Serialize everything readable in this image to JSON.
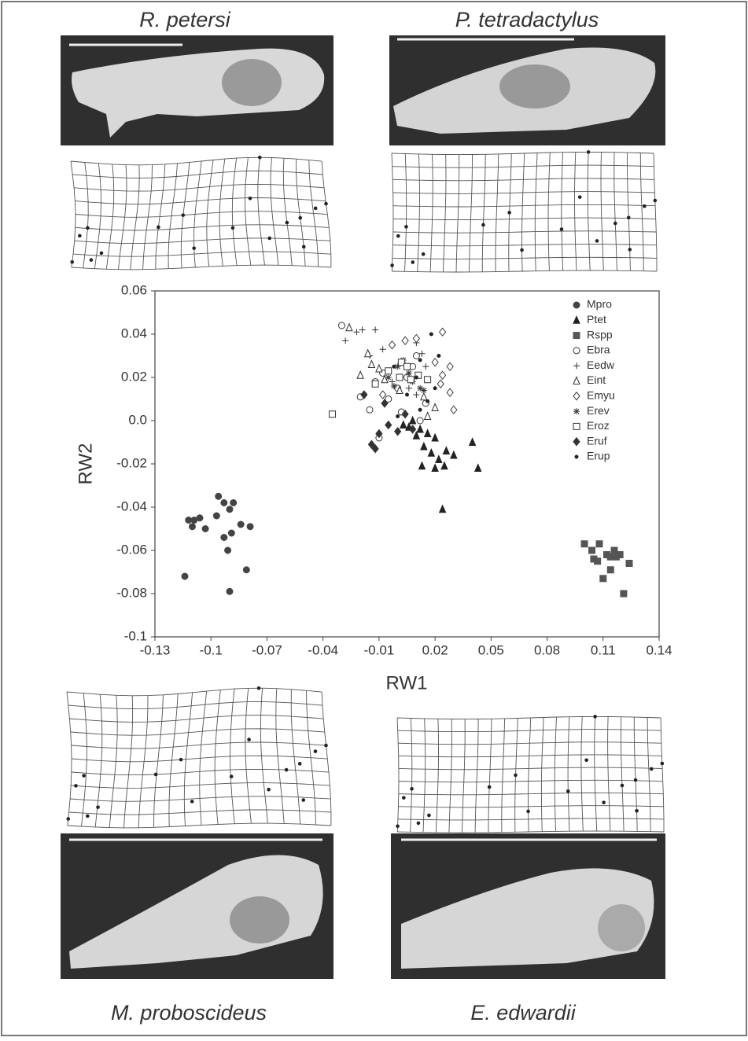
{
  "specimen_labels": [
    "R. petersi",
    "P. tetradactylus",
    "M. proboscideus",
    "E. edwardii"
  ],
  "chart_data": {
    "type": "scatter",
    "x_label": "RW1",
    "y_label": "RW2",
    "xlim": [
      -0.13,
      0.14
    ],
    "xticks": [
      -0.13,
      -0.1,
      -0.07,
      -0.04,
      -0.01,
      0.02,
      0.05,
      0.08,
      0.11,
      0.14
    ],
    "ylim": [
      -0.1,
      0.06
    ],
    "yticks": [
      0.06,
      0.04,
      0.02,
      {
        "value": 0,
        "label": "0.0"
      },
      -0.02,
      -0.04,
      -0.06,
      -0.08,
      -0.1
    ],
    "grid": false,
    "legend": "upper right",
    "series": [
      {
        "name": "Mpro",
        "marker": "circle-filled",
        "color": "#444444",
        "values": [
          [
            -0.112,
            -0.046
          ],
          [
            -0.109,
            -0.046
          ],
          [
            -0.106,
            -0.045
          ],
          [
            -0.11,
            -0.049
          ],
          [
            -0.096,
            -0.035
          ],
          [
            -0.093,
            -0.038
          ],
          [
            -0.088,
            -0.038
          ],
          [
            -0.09,
            -0.041
          ],
          [
            -0.103,
            -0.05
          ],
          [
            -0.093,
            -0.054
          ],
          [
            -0.089,
            -0.052
          ],
          [
            -0.084,
            -0.048
          ],
          [
            -0.079,
            -0.049
          ],
          [
            -0.114,
            -0.072
          ],
          [
            -0.091,
            -0.06
          ],
          [
            -0.09,
            -0.079
          ],
          [
            -0.081,
            -0.069
          ],
          [
            -0.097,
            -0.044
          ]
        ]
      },
      {
        "name": "Ptet",
        "marker": "triangle-filled",
        "color": "#222222",
        "values": [
          [
            0.003,
            -0.002
          ],
          [
            0.008,
            0.0
          ],
          [
            0.012,
            -0.004
          ],
          [
            0.016,
            -0.006
          ],
          [
            0.02,
            -0.008
          ],
          [
            0.014,
            -0.012
          ],
          [
            0.018,
            -0.015
          ],
          [
            0.022,
            -0.018
          ],
          [
            0.026,
            -0.014
          ],
          [
            0.013,
            -0.021
          ],
          [
            0.02,
            -0.022
          ],
          [
            0.025,
            -0.021
          ],
          [
            0.03,
            -0.016
          ],
          [
            0.04,
            -0.01
          ],
          [
            0.043,
            -0.022
          ],
          [
            0.024,
            -0.041
          ],
          [
            0.01,
            -0.007
          ],
          [
            0.006,
            -0.003
          ]
        ]
      },
      {
        "name": "Rspp",
        "marker": "square-filled",
        "color": "#555555",
        "values": [
          [
            0.1,
            -0.057
          ],
          [
            0.104,
            -0.06
          ],
          [
            0.108,
            -0.057
          ],
          [
            0.105,
            -0.064
          ],
          [
            0.107,
            -0.065
          ],
          [
            0.112,
            -0.062
          ],
          [
            0.116,
            -0.06
          ],
          [
            0.114,
            -0.063
          ],
          [
            0.119,
            -0.062
          ],
          [
            0.124,
            -0.066
          ],
          [
            0.114,
            -0.069
          ],
          [
            0.11,
            -0.073
          ],
          [
            0.121,
            -0.08
          ],
          [
            0.117,
            -0.063
          ]
        ]
      },
      {
        "name": "Ebra",
        "marker": "circle-open",
        "color": "#333333",
        "values": [
          [
            -0.03,
            0.044
          ],
          [
            -0.02,
            0.011
          ],
          [
            -0.015,
            0.005
          ],
          [
            -0.01,
            -0.008
          ],
          [
            -0.005,
            0.01
          ],
          [
            0.0,
            0.015
          ],
          [
            0.005,
            0.02
          ],
          [
            0.008,
            0.025
          ],
          [
            0.012,
            0.0
          ],
          [
            0.015,
            0.008
          ],
          [
            -0.008,
            0.022
          ],
          [
            0.002,
            0.004
          ],
          [
            0.01,
            0.03
          ],
          [
            -0.012,
            0.018
          ]
        ]
      },
      {
        "name": "Eedw",
        "marker": "plus",
        "color": "#333333",
        "values": [
          [
            -0.028,
            0.037
          ],
          [
            -0.022,
            0.041
          ],
          [
            -0.019,
            0.042
          ],
          [
            -0.012,
            0.042
          ],
          [
            -0.008,
            0.033
          ],
          [
            0.01,
            0.036
          ],
          [
            0.013,
            0.031
          ],
          [
            -0.003,
            0.018
          ],
          [
            0.006,
            0.015
          ],
          [
            -0.015,
            0.03
          ],
          [
            0.015,
            0.025
          ],
          [
            0.01,
            0.012
          ]
        ]
      },
      {
        "name": "Eint",
        "marker": "triangle-open",
        "color": "#333333",
        "values": [
          [
            -0.026,
            0.043
          ],
          [
            -0.02,
            0.021
          ],
          [
            -0.014,
            0.026
          ],
          [
            -0.007,
            0.019
          ],
          [
            -0.01,
            0.024
          ],
          [
            0.001,
            0.014
          ],
          [
            0.014,
            0.011
          ],
          [
            0.02,
            0.006
          ],
          [
            0.016,
            0.002
          ],
          [
            -0.016,
            0.031
          ]
        ]
      },
      {
        "name": "Emyu",
        "marker": "diamond-open",
        "color": "#333333",
        "values": [
          [
            0.024,
            0.041
          ],
          [
            0.028,
            0.025
          ],
          [
            0.02,
            0.027
          ],
          [
            0.024,
            0.021
          ],
          [
            0.028,
            0.013
          ],
          [
            0.03,
            0.005
          ],
          [
            -0.003,
            0.035
          ],
          [
            0.01,
            0.038
          ],
          [
            0.004,
            0.037
          ],
          [
            0.023,
            0.017
          ],
          [
            -0.008,
            0.012
          ]
        ]
      },
      {
        "name": "Erev",
        "marker": "star",
        "color": "#333333",
        "values": [
          [
            -0.005,
            0.02
          ],
          [
            0.0,
            0.025
          ],
          [
            0.003,
            0.028
          ],
          [
            0.006,
            0.022
          ],
          [
            0.012,
            0.015
          ],
          [
            0.014,
            0.014
          ],
          [
            -0.002,
            0.016
          ],
          [
            0.008,
            0.018
          ]
        ]
      },
      {
        "name": "Eroz",
        "marker": "square-open",
        "color": "#333333",
        "values": [
          [
            -0.035,
            0.003
          ],
          [
            -0.012,
            0.017
          ],
          [
            -0.005,
            0.023
          ],
          [
            0.002,
            0.027
          ],
          [
            0.005,
            0.025
          ],
          [
            0.007,
            0.019
          ],
          [
            0.011,
            0.021
          ],
          [
            0.016,
            0.019
          ],
          [
            0.001,
            0.02
          ]
        ]
      },
      {
        "name": "Eruf",
        "marker": "diamond-filled",
        "color": "#333333",
        "values": [
          [
            -0.018,
            0.012
          ],
          [
            -0.014,
            -0.011
          ],
          [
            -0.012,
            -0.013
          ],
          [
            -0.01,
            -0.006
          ],
          [
            -0.005,
            -0.002
          ],
          [
            0.0,
            -0.005
          ],
          [
            0.008,
            -0.004
          ],
          [
            0.004,
            0.003
          ],
          [
            -0.007,
            0.008
          ]
        ]
      },
      {
        "name": "Erup",
        "marker": "dot",
        "color": "#222222",
        "values": [
          [
            0.018,
            0.04
          ],
          [
            0.012,
            0.028
          ],
          [
            0.01,
            0.02
          ],
          [
            0.005,
            0.012
          ],
          [
            0.016,
            0.009
          ],
          [
            0.012,
            0.005
          ],
          [
            0.0,
            0.002
          ],
          [
            0.02,
            0.015
          ],
          [
            -0.002,
            0.025
          ],
          [
            0.022,
            0.03
          ]
        ]
      }
    ]
  }
}
